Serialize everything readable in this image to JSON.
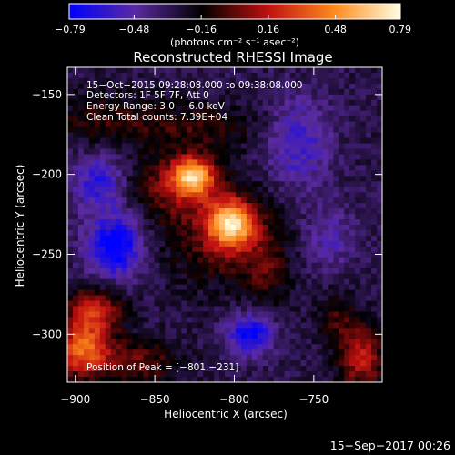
{
  "chart_data": {
    "type": "heatmap",
    "title": "Reconstructed RHESSI Image",
    "xlabel": "Heliocentric X (arcsec)",
    "ylabel": "Heliocentric Y (arcsec)",
    "xlim": [
      -905,
      -707
    ],
    "ylim": [
      -330,
      -133
    ],
    "x_ticks": [
      -900,
      -850,
      -800,
      -750
    ],
    "y_ticks": [
      -150,
      -200,
      -250,
      -300
    ],
    "colorbar": {
      "range": [
        -0.79,
        0.79
      ],
      "ticks": [
        "−0.79",
        "−0.48",
        "−0.16",
        "0.16",
        "0.48",
        "0.79"
      ],
      "tick_values": [
        -0.79,
        -0.48,
        -0.16,
        0.16,
        0.48,
        0.79
      ],
      "label": "(photons cm⁻² s⁻¹ asec⁻²)",
      "colors": [
        "#0000ff",
        "#5a2aa0",
        "#000000",
        "#c01010",
        "#ff8a1c",
        "#ffffe0"
      ]
    },
    "annotations": {
      "time_range": "15−Oct−2015 09:28:08.000 to 09:38:08.000",
      "detectors": "Detectors: 1F 5F 7F, Att 0",
      "energy": "Energy Range: 3.0 − 6.0 keV",
      "method": "Clean    Total counts: 7.39E+04",
      "peak": "Position of Peak = [−801,−231]"
    },
    "peak_position": [
      -801,
      -231
    ],
    "grid": false,
    "sources": [
      {
        "x": -802,
        "y": -231,
        "amp": 0.79,
        "sx": 10,
        "sy": 10
      },
      {
        "x": -826,
        "y": -201,
        "amp": 0.74,
        "sx": 9,
        "sy": 8
      },
      {
        "x": -838,
        "y": -206,
        "amp": 0.32,
        "sx": 20,
        "sy": 14
      },
      {
        "x": -808,
        "y": -238,
        "amp": 0.3,
        "sx": 24,
        "sy": 22
      },
      {
        "x": -780,
        "y": -260,
        "amp": 0.2,
        "sx": 10,
        "sy": 16
      },
      {
        "x": -820,
        "y": -170,
        "amp": 0.2,
        "sx": 28,
        "sy": 10
      },
      {
        "x": -880,
        "y": -165,
        "amp": 0.2,
        "sx": 25,
        "sy": 12
      },
      {
        "x": -895,
        "y": -310,
        "amp": 0.65,
        "sx": 12,
        "sy": 12
      },
      {
        "x": -888,
        "y": -285,
        "amp": 0.5,
        "sx": 12,
        "sy": 10
      },
      {
        "x": -860,
        "y": -318,
        "amp": 0.3,
        "sx": 18,
        "sy": 10
      },
      {
        "x": -720,
        "y": -315,
        "amp": 0.45,
        "sx": 10,
        "sy": 14
      },
      {
        "x": -735,
        "y": -290,
        "amp": 0.2,
        "sx": 10,
        "sy": 12
      },
      {
        "x": -875,
        "y": -245,
        "amp": -0.55,
        "sx": 12,
        "sy": 14
      },
      {
        "x": -885,
        "y": -205,
        "amp": -0.35,
        "sx": 12,
        "sy": 12
      },
      {
        "x": -790,
        "y": -300,
        "amp": -0.5,
        "sx": 10,
        "sy": 9
      },
      {
        "x": -760,
        "y": -180,
        "amp": -0.3,
        "sx": 14,
        "sy": 20
      },
      {
        "x": -740,
        "y": -240,
        "amp": -0.2,
        "sx": 12,
        "sy": 14
      }
    ],
    "baseline": -0.3
  },
  "footer": {
    "timestamp": "15−Sep−2017 00:26"
  }
}
